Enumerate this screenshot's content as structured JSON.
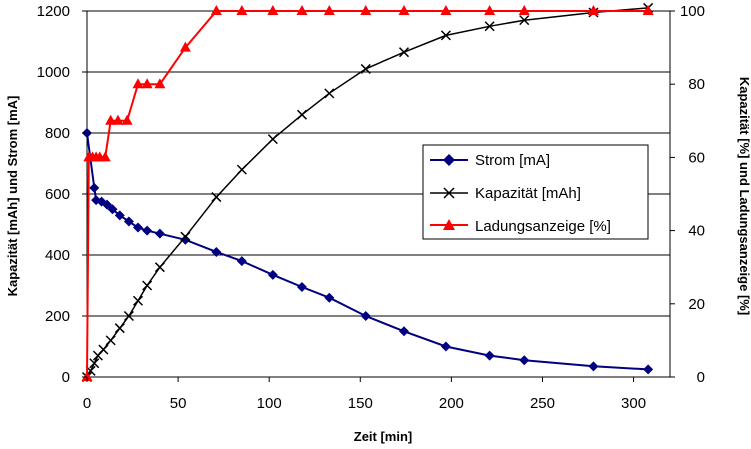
{
  "chart_data": {
    "type": "line",
    "title": "",
    "xlabel": "Zeit [min]",
    "ylabel_left": "Kapazität [mAh] und Strom [mA]",
    "ylabel_right": "Kapazität [%] und Ladungsanzeige [%]",
    "xlim": [
      0,
      320
    ],
    "ylim_left": [
      0,
      1200
    ],
    "ylim_right": [
      0,
      100
    ],
    "x_ticks": [
      "0",
      "50",
      "100",
      "150",
      "200",
      "250",
      "300"
    ],
    "y_left_ticks": [
      "0",
      "200",
      "400",
      "600",
      "800",
      "1000",
      "1200"
    ],
    "y_right_ticks": [
      "0",
      "20",
      "40",
      "60",
      "80",
      "100"
    ],
    "grid": "horizontal",
    "legend_position": "center-right",
    "series": [
      {
        "name": "Strom [mA]",
        "axis": "left",
        "color": "#000080",
        "marker": "diamond",
        "x": [
          0,
          4,
          5,
          8,
          11,
          14,
          18,
          23,
          28,
          33,
          40,
          54,
          71,
          85,
          102,
          118,
          133,
          153,
          174,
          197,
          221,
          240,
          278,
          308
        ],
        "y": [
          800,
          620,
          580,
          575,
          565,
          550,
          530,
          510,
          490,
          480,
          470,
          450,
          410,
          380,
          335,
          295,
          260,
          200,
          150,
          100,
          70,
          55,
          35,
          25
        ]
      },
      {
        "name": "Kapazität [mAh]",
        "axis": "left",
        "color": "#000000",
        "marker": "x",
        "x": [
          0,
          2,
          4,
          6,
          9,
          13,
          18,
          23,
          28,
          33,
          40,
          54,
          71,
          85,
          102,
          118,
          133,
          153,
          174,
          197,
          221,
          240,
          278,
          308
        ],
        "y": [
          0,
          20,
          45,
          70,
          90,
          120,
          160,
          200,
          250,
          300,
          360,
          460,
          590,
          680,
          780,
          860,
          930,
          1010,
          1065,
          1120,
          1150,
          1170,
          1195,
          1210
        ]
      },
      {
        "name": "Ladungsanzeige [%]",
        "axis": "right",
        "color": "#ff0000",
        "marker": "triangle",
        "x": [
          0,
          1,
          3,
          5,
          7,
          10,
          13,
          17,
          22,
          28,
          33,
          40,
          54,
          71,
          85,
          102,
          118,
          133,
          153,
          174,
          197,
          221,
          240,
          278,
          308
        ],
        "y": [
          0,
          60,
          60,
          60,
          60,
          60,
          70,
          70,
          70,
          80,
          80,
          80,
          90,
          100,
          100,
          100,
          100,
          100,
          100,
          100,
          100,
          100,
          100,
          100,
          100
        ]
      }
    ]
  }
}
